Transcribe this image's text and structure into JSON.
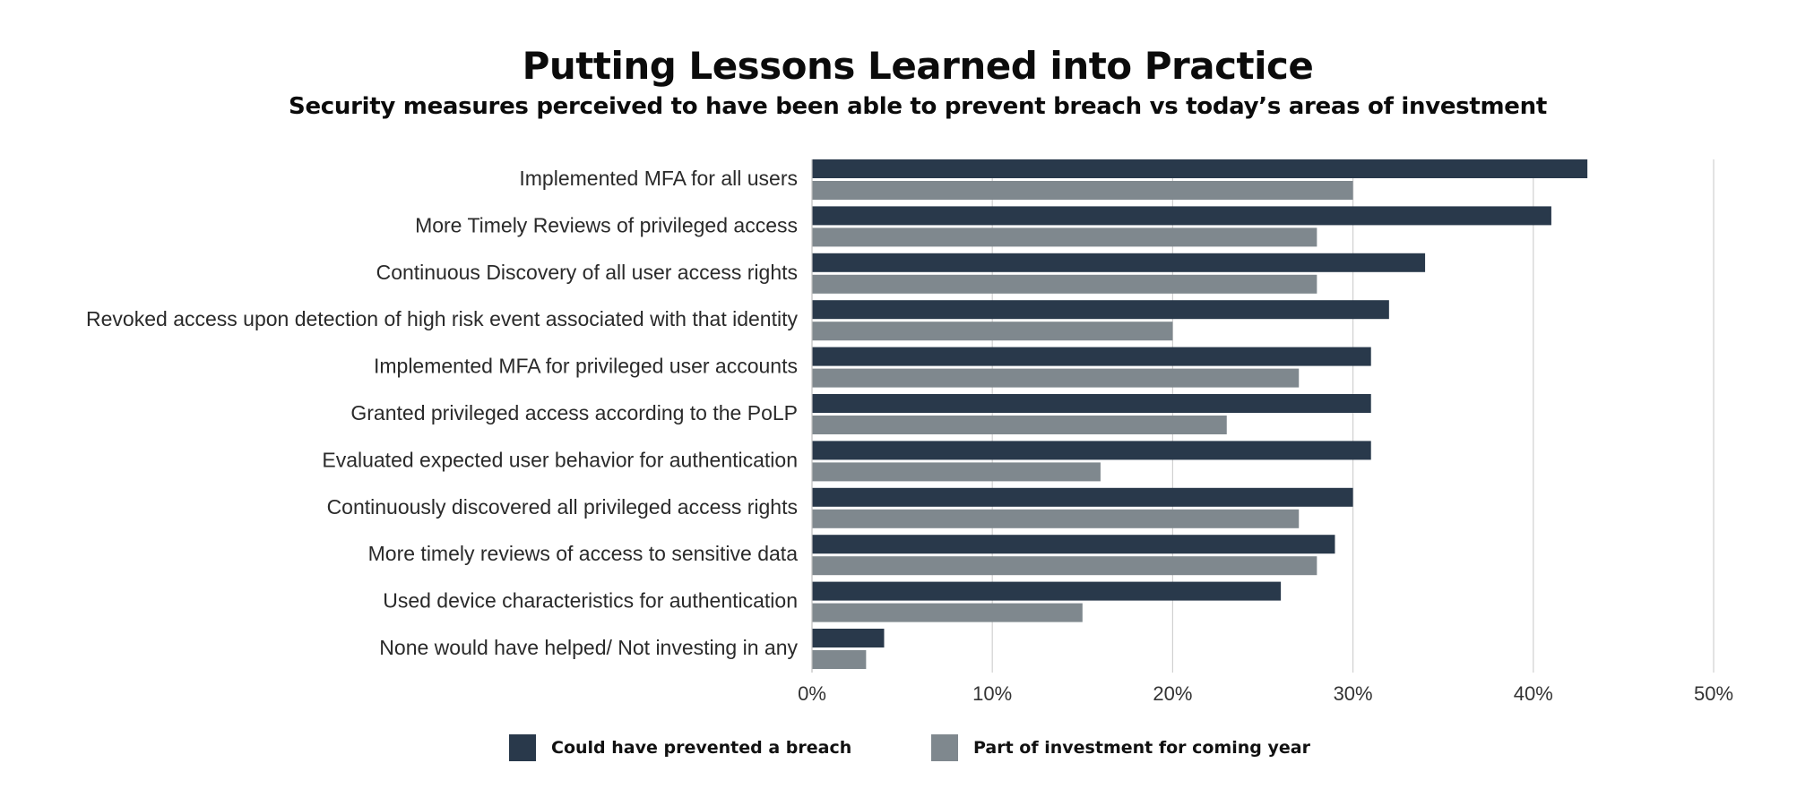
{
  "colors": {
    "series1": "#29394b",
    "series2": "#7f888e",
    "grid": "#d0d0d0"
  },
  "chart_data": {
    "type": "bar",
    "orientation": "horizontal",
    "title": "Putting Lessons Learned into Practice",
    "subtitle": "Security measures perceived to have been able to prevent breach vs today’s areas of investment",
    "categories": [
      "Implemented MFA for all users",
      "More Timely Reviews of privileged access",
      "Continuous Discovery of all user access rights",
      "Revoked access upon detection of high risk event associated with that identity",
      "Implemented MFA for privileged user accounts",
      "Granted privileged access according to the PoLP",
      "Evaluated expected user behavior for authentication",
      "Continuously discovered all privileged access rights",
      "More timely reviews of access to sensitive data",
      "Used device characteristics for authentication",
      "None would have helped/ Not investing in any"
    ],
    "series": [
      {
        "name": "Could have prevented a breach",
        "values": [
          43,
          41,
          34,
          32,
          31,
          31,
          31,
          30,
          29,
          26,
          4
        ]
      },
      {
        "name": "Part of investment for coming year",
        "values": [
          30,
          28,
          28,
          20,
          27,
          23,
          16,
          27,
          28,
          15,
          3
        ]
      }
    ],
    "xlim": [
      0,
      50
    ],
    "xticks": [
      "0%",
      "10%",
      "20%",
      "30%",
      "40%",
      "50%"
    ],
    "grid": true,
    "legend_position": "bottom"
  }
}
